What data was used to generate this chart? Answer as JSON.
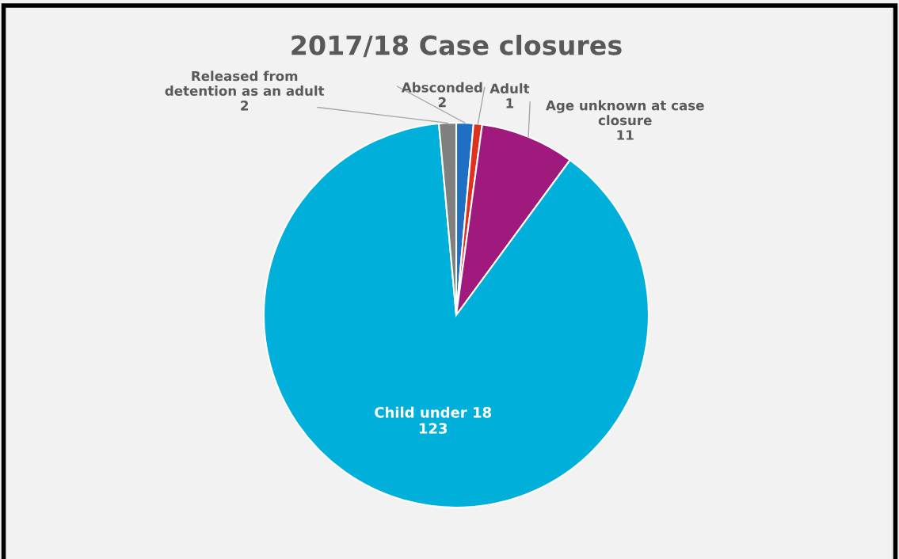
{
  "chart_data": {
    "type": "pie",
    "title": "2017/18 Case closures",
    "categories": [
      "Absconded",
      "Adult",
      "Age unknown at case closure",
      "Child under 18",
      "Released from detention as an adult"
    ],
    "values": [
      2,
      1,
      11,
      123,
      2
    ],
    "colors": [
      "#1f6fc5",
      "#e0301e",
      "#a0197d",
      "#00b0da",
      "#7f7f7f"
    ],
    "data_labels": true
  }
}
